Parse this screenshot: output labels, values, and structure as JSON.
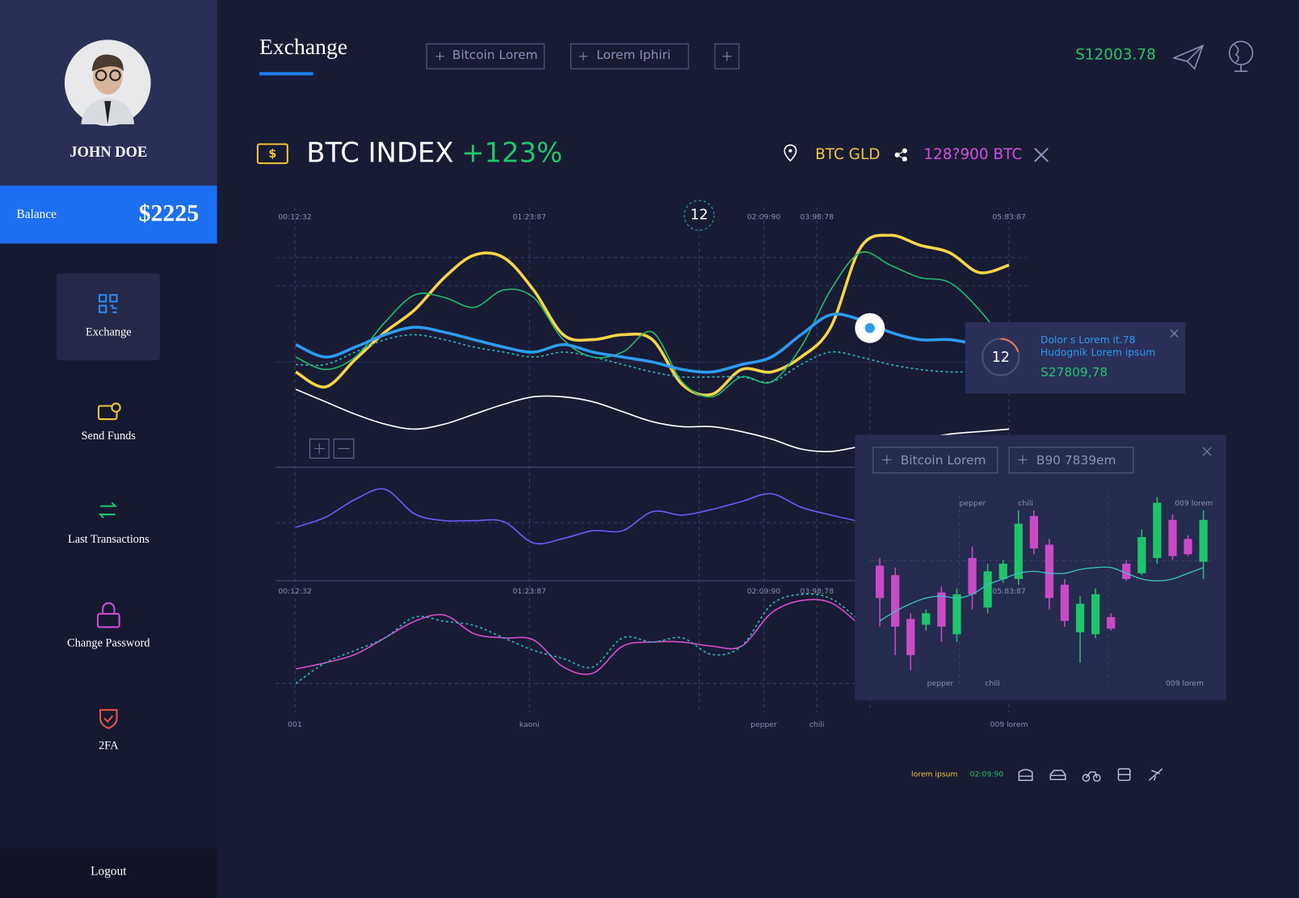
{
  "sidebar": {
    "user_name": "JOHN DOE",
    "balance_label": "Balance",
    "balance_value": "$2225",
    "nav": [
      "Exchange",
      "Send Funds",
      "Last Transactions",
      "Change Password",
      "2FA"
    ],
    "logout": "Logout"
  },
  "header": {
    "title": "Exchange",
    "tabs": [
      "Bitcoin Lorem",
      "Lorem Iphiri"
    ],
    "account_balance": "S12003.78"
  },
  "index": {
    "currency_symbol": "$",
    "title": "BTC INDEX",
    "change": "+123%",
    "location": "BTC GLD",
    "amount": "128?900 BTC"
  },
  "main_chart": {
    "marker": 12,
    "x_labels": [
      "00:12:32",
      "01:23:87",
      "02:09:90",
      "03:98:78",
      "05:83:87"
    ],
    "bottom_labels": [
      "001",
      "kaoni",
      "pepper",
      "chili",
      "009 lorem"
    ],
    "price_series": [
      {
        "color": "#f7d548",
        "emphasis": true,
        "values": [
          37,
          31,
          42,
          53,
          62,
          75,
          84,
          83,
          70,
          52,
          50,
          52,
          50,
          32,
          28,
          38,
          37,
          43,
          55,
          87,
          92,
          88,
          85,
          77,
          80
        ]
      },
      {
        "color": "#22b86a",
        "values": [
          43,
          38,
          43,
          57,
          68,
          67,
          63,
          70,
          67,
          50,
          43,
          45,
          53,
          33,
          27,
          35,
          33,
          47,
          70,
          85,
          80,
          75,
          73,
          62,
          47
        ]
      },
      {
        "color": "#2d9bf0",
        "emphasis": true,
        "values": [
          48,
          43,
          47,
          52,
          55,
          53,
          50,
          47,
          45,
          48,
          45,
          43,
          41,
          38,
          37,
          40,
          43,
          52,
          60,
          58,
          53,
          50,
          50,
          48,
          47
        ]
      },
      {
        "color": "#2bb3b8",
        "dashed": true,
        "values": [
          40,
          40,
          45,
          50,
          52,
          50,
          47,
          45,
          43,
          45,
          43,
          40,
          37,
          35,
          35,
          35,
          33,
          40,
          45,
          43,
          40,
          38,
          37,
          37,
          35
        ]
      },
      {
        "color": "#ffffff",
        "values": [
          30,
          25,
          20,
          16,
          14,
          16,
          20,
          24,
          27,
          27,
          25,
          21,
          17,
          15,
          15,
          13,
          10,
          6,
          5,
          7,
          8,
          10,
          12,
          13,
          14
        ]
      }
    ],
    "oscillator_series": [
      {
        "color": "#6a5cf0",
        "values": [
          47,
          56,
          72,
          81,
          59,
          53,
          53,
          52,
          33,
          37,
          44,
          44,
          61,
          58,
          63,
          70,
          77,
          65,
          58,
          52
        ]
      }
    ],
    "volume_series": [
      {
        "color": "#d24ec9",
        "values": [
          18,
          24,
          32,
          48,
          64,
          70,
          52,
          48,
          46,
          20,
          14,
          40,
          44,
          44,
          40,
          40,
          72,
          84,
          82,
          60
        ]
      },
      {
        "color": "#2bb3b8",
        "dashed": true,
        "values": [
          4,
          24,
          36,
          48,
          68,
          64,
          60,
          48,
          36,
          28,
          20,
          48,
          44,
          48,
          32,
          40,
          80,
          90,
          86,
          64
        ]
      }
    ]
  },
  "tooltip": {
    "count": 12,
    "line1": "Dolor s Lorem it.78",
    "line2": "Hudognik Lorem ipsum",
    "value": "S27809,78"
  },
  "candle_panel": {
    "tabs": [
      "Bitcoin Lorem",
      "B90 7839em"
    ],
    "top_labels": [
      "pepper",
      "chili",
      "009 lorem"
    ],
    "bottom_labels": [
      "pepper",
      "chili",
      "009 lorem"
    ],
    "up_color": "#1fc46a",
    "down_color": "#c94bc4",
    "trend_color": "#3cc0c4",
    "candles": [
      {
        "open": 64,
        "close": 47,
        "high": 68,
        "low": 32
      },
      {
        "open": 59,
        "close": 32,
        "high": 63,
        "low": 17
      },
      {
        "open": 36,
        "close": 17,
        "high": 39,
        "low": 9
      },
      {
        "open": 33,
        "close": 39,
        "high": 41,
        "low": 30
      },
      {
        "open": 50,
        "close": 32,
        "high": 53,
        "low": 24
      },
      {
        "open": 28,
        "close": 49,
        "high": 52,
        "low": 24
      },
      {
        "open": 68,
        "close": 49,
        "high": 74,
        "low": 41
      },
      {
        "open": 42,
        "close": 61,
        "high": 65,
        "low": 39
      },
      {
        "open": 57,
        "close": 65,
        "high": 67,
        "low": 55
      },
      {
        "open": 57,
        "close": 86,
        "high": 93,
        "low": 54
      },
      {
        "open": 90,
        "close": 73,
        "high": 93,
        "low": 70
      },
      {
        "open": 75,
        "close": 47,
        "high": 78,
        "low": 41
      },
      {
        "open": 54,
        "close": 35,
        "high": 57,
        "low": 32
      },
      {
        "open": 29,
        "close": 44,
        "high": 48,
        "low": 13
      },
      {
        "open": 28,
        "close": 49,
        "high": 52,
        "low": 26
      },
      {
        "open": 37,
        "close": 31,
        "high": 39,
        "low": 30
      },
      {
        "open": 65,
        "close": 57,
        "high": 67,
        "low": 56
      },
      {
        "open": 60,
        "close": 79,
        "high": 83,
        "low": 59
      },
      {
        "open": 68,
        "close": 97,
        "high": 100,
        "low": 65
      },
      {
        "open": 88,
        "close": 69,
        "high": 91,
        "low": 67
      },
      {
        "open": 78,
        "close": 70,
        "high": 80,
        "low": 69
      },
      {
        "open": 66,
        "close": 88,
        "high": 93,
        "low": 57
      }
    ],
    "trend": [
      35,
      40,
      44,
      47,
      48,
      47,
      49,
      54,
      57,
      60,
      61,
      60,
      60,
      62,
      63,
      63,
      60,
      57,
      56,
      57,
      60,
      63
    ]
  },
  "footer": {
    "label": "lorem ipsum",
    "time": "02:09:90"
  }
}
